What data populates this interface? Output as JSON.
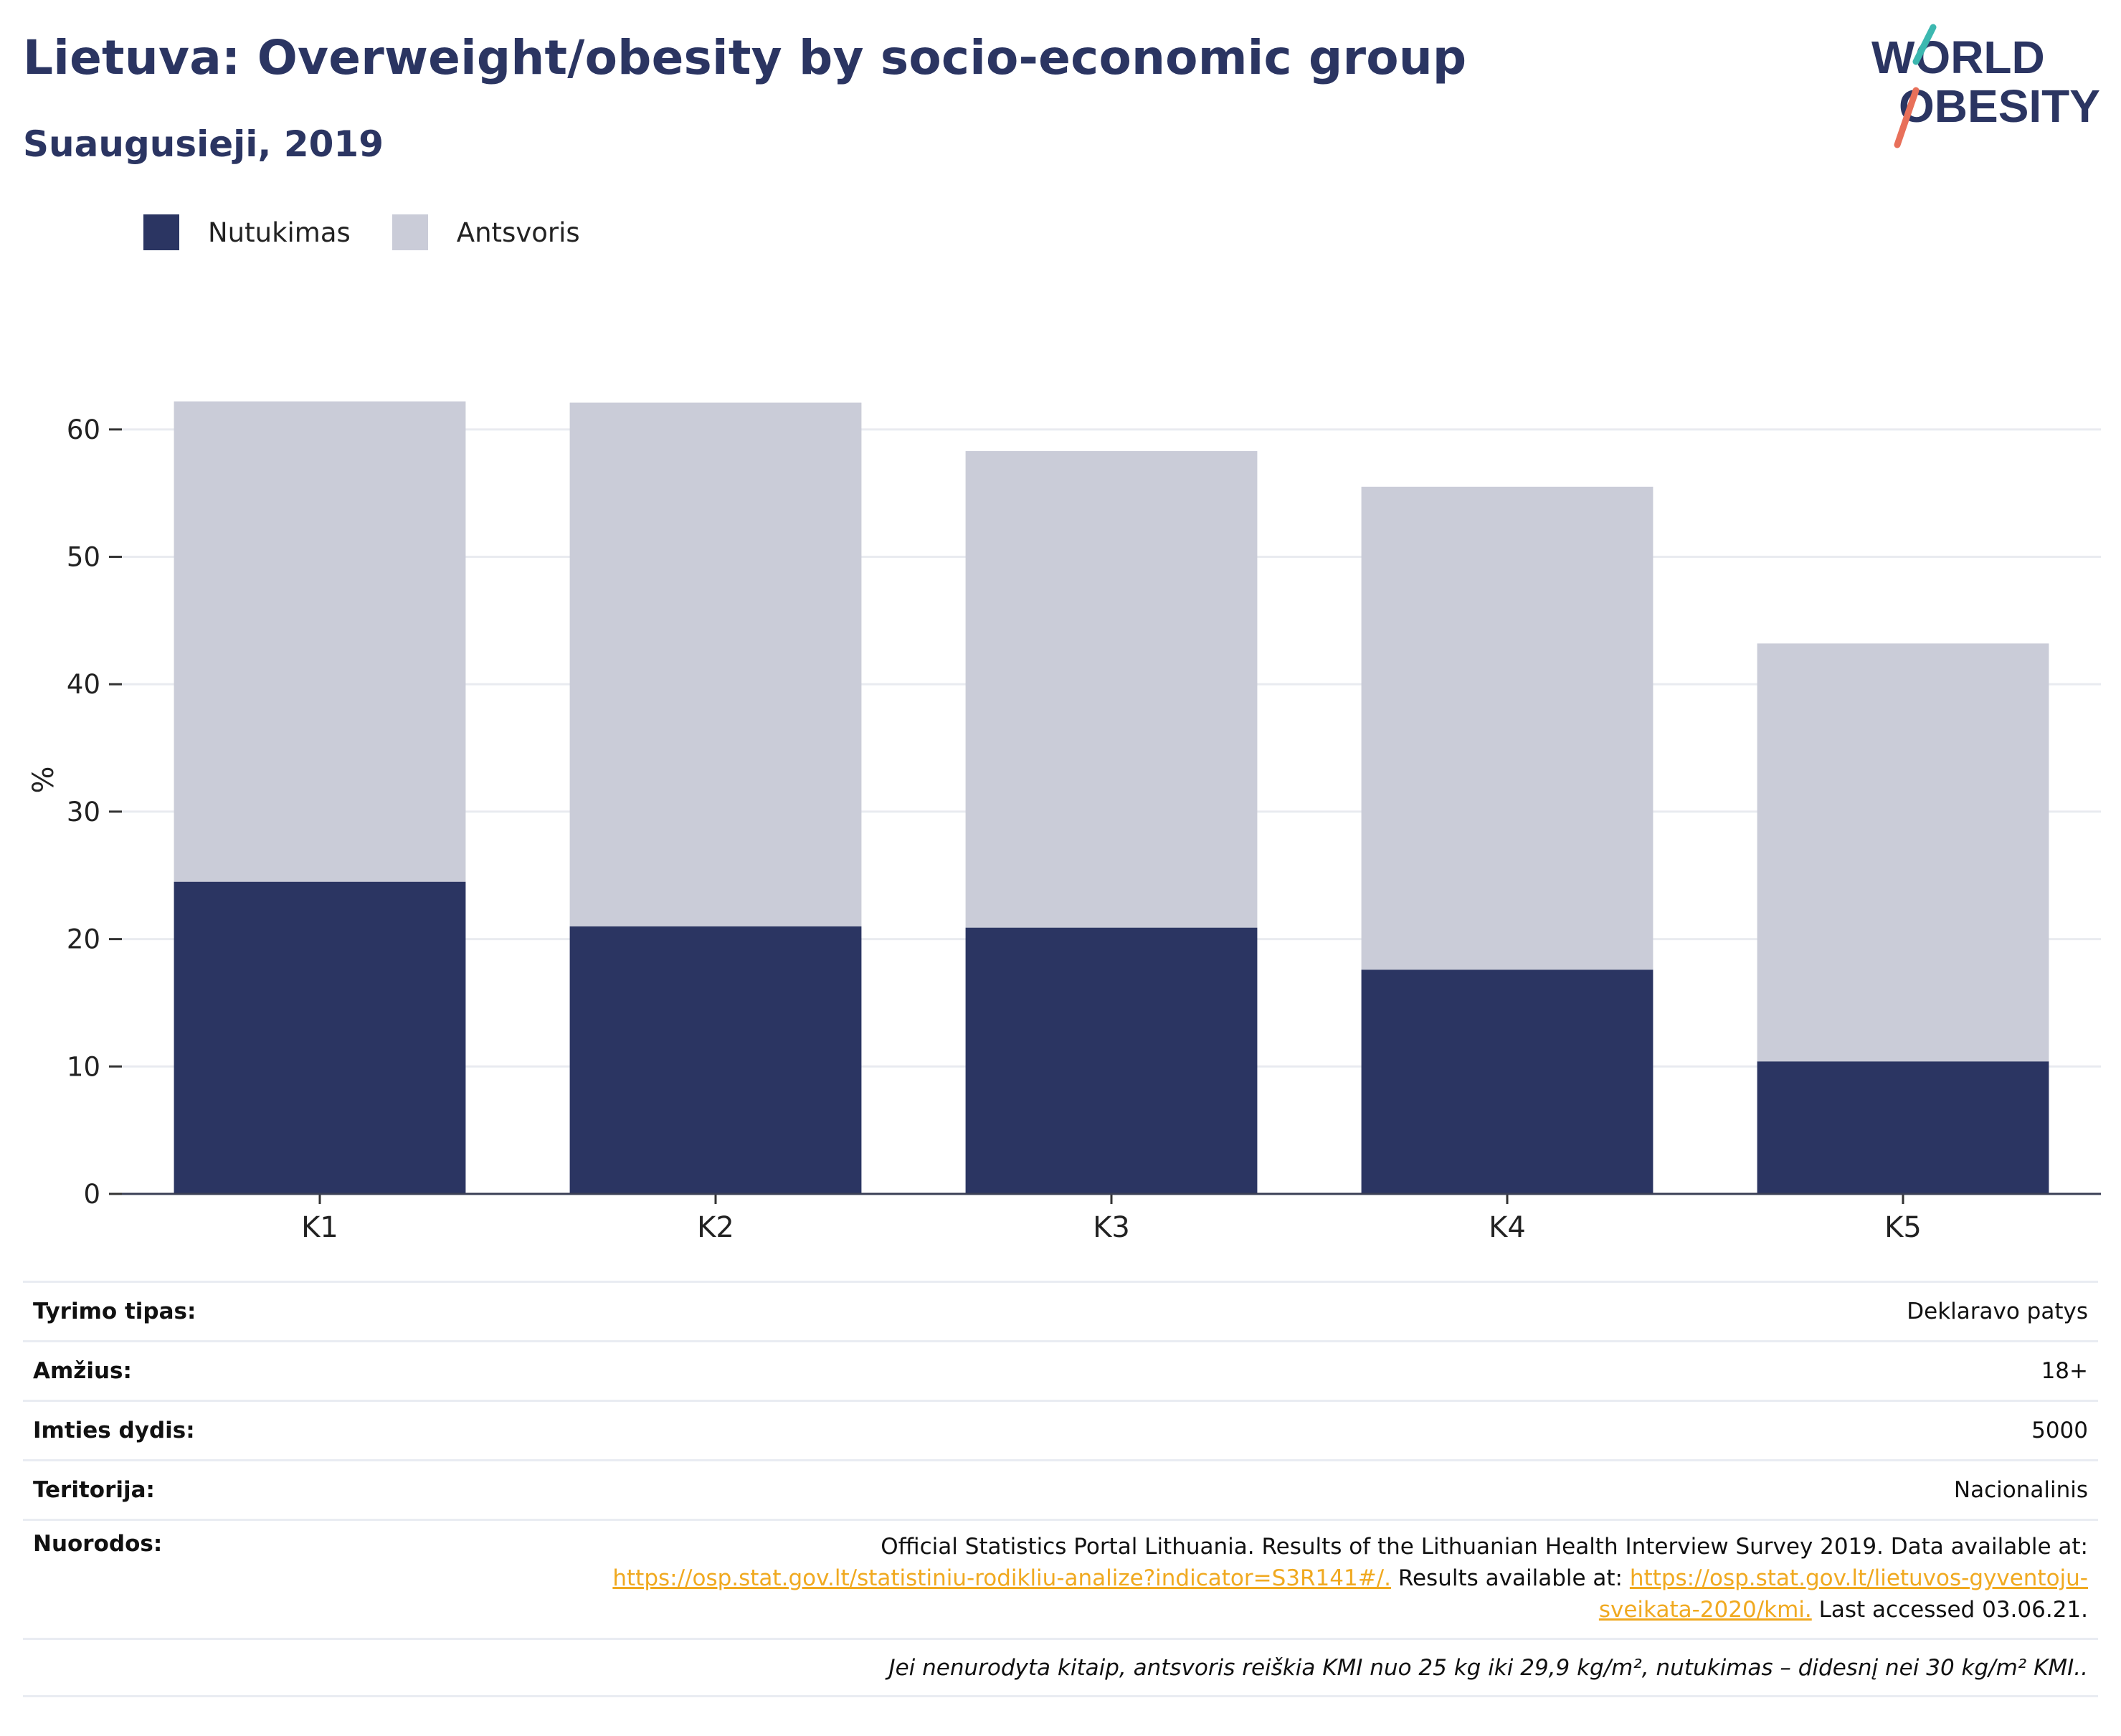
{
  "header": {
    "title": "Lietuva: Overweight/obesity by socio-economic group",
    "subtitle": "Suaugusieji, 2019"
  },
  "logo": {
    "line1": "WORLD",
    "line2": "OBESITY"
  },
  "legend": [
    {
      "label": "Nutukimas",
      "color": "#2b3562"
    },
    {
      "label": "Antsvoris",
      "color": "#caccd8"
    }
  ],
  "chart_data": {
    "type": "bar",
    "stacked": true,
    "categories": [
      "K1",
      "K2",
      "K3",
      "K4",
      "K5"
    ],
    "series": [
      {
        "name": "Nutukimas",
        "color": "#2b3562",
        "values": [
          24.5,
          21.0,
          20.9,
          17.6,
          10.4
        ]
      },
      {
        "name": "Antsvoris",
        "color": "#caccd8",
        "values": [
          37.7,
          41.1,
          37.4,
          37.9,
          32.8
        ]
      }
    ],
    "ylabel": "%",
    "ylim": [
      0,
      65
    ],
    "yticks": [
      0,
      10,
      20,
      30,
      40,
      50,
      60
    ],
    "grid": true,
    "legend_position": "top-left"
  },
  "meta": {
    "survey_type": {
      "label": "Tyrimo tipas:",
      "value": "Deklaravo patys"
    },
    "age": {
      "label": "Amžius:",
      "value": "18+"
    },
    "sample": {
      "label": "Imties dydis:",
      "value": "5000"
    },
    "territory": {
      "label": "Teritorija:",
      "value": "Nacionalinis"
    },
    "references": {
      "label": "Nuorodos:",
      "text1": "Official Statistics Portal Lithuania. Results of the Lithuanian Health Interview Survey 2019. Data available at:",
      "link1": "https://osp.stat.gov.lt/statistiniu-rodikliu-analize?indicator=S3R141#/.",
      "text2": " Results available at: ",
      "link2a": "https://osp.stat.gov.lt/lietuvos-gyventoju-",
      "link2b": "sveikata-2020/kmi.",
      "text3": " Last accessed 03.06.21."
    },
    "note": "Jei nenurodyta kitaip, antsvoris reiškia KMI nuo 25 kg iki 29,9 kg/m², nutukimas – didesnį nei 30 kg/m² KMI.."
  }
}
